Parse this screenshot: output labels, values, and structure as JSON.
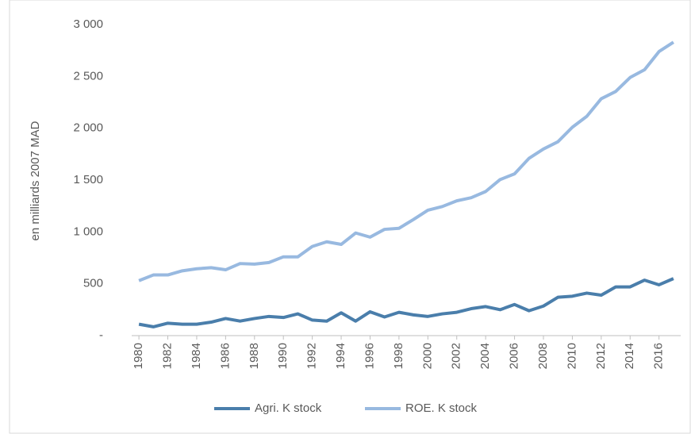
{
  "chart_data": {
    "type": "line",
    "y_label": "en milliards 2007 MAD",
    "x": [
      1980,
      1981,
      1982,
      1983,
      1984,
      1985,
      1986,
      1987,
      1988,
      1989,
      1990,
      1991,
      1992,
      1993,
      1994,
      1995,
      1996,
      1997,
      1998,
      1999,
      2000,
      2001,
      2002,
      2003,
      2004,
      2005,
      2006,
      2007,
      2008,
      2009,
      2010,
      2011,
      2012,
      2013,
      2014,
      2015,
      2016,
      2017
    ],
    "xlim": [
      1979.5,
      2017.5
    ],
    "xticks": [
      1980,
      1982,
      1984,
      1986,
      1988,
      1990,
      1992,
      1994,
      1996,
      1998,
      2000,
      2002,
      2004,
      2006,
      2008,
      2010,
      2012,
      2014,
      2016
    ],
    "ylim": [
      0,
      3000
    ],
    "yticks": [
      {
        "value": 0,
        "label": "-"
      },
      500,
      {
        "value": 1000,
        "label": "1 000"
      },
      {
        "value": 1500,
        "label": "1 500"
      },
      {
        "value": 2000,
        "label": "2 000"
      },
      {
        "value": 2500,
        "label": "2 500"
      },
      {
        "value": 3000,
        "label": "3 000"
      }
    ],
    "grid": false,
    "legend": "bottom",
    "series": [
      {
        "name": "Agri. K stock",
        "color": "#4a7eab",
        "values": [
          110,
          85,
          120,
          110,
          110,
          130,
          165,
          140,
          165,
          185,
          175,
          210,
          150,
          140,
          220,
          140,
          230,
          180,
          225,
          200,
          185,
          210,
          225,
          260,
          280,
          250,
          300,
          240,
          285,
          370,
          380,
          410,
          390,
          470,
          470,
          535,
          490,
          550
        ]
      },
      {
        "name": "ROE. K stock",
        "color": "#98b9e0",
        "values": [
          530,
          585,
          585,
          625,
          645,
          655,
          635,
          695,
          690,
          705,
          760,
          760,
          860,
          905,
          880,
          990,
          950,
          1025,
          1035,
          1120,
          1210,
          1245,
          1300,
          1330,
          1390,
          1505,
          1560,
          1710,
          1800,
          1870,
          2010,
          2115,
          2285,
          2355,
          2490,
          2565,
          2740,
          2830
        ]
      }
    ]
  }
}
